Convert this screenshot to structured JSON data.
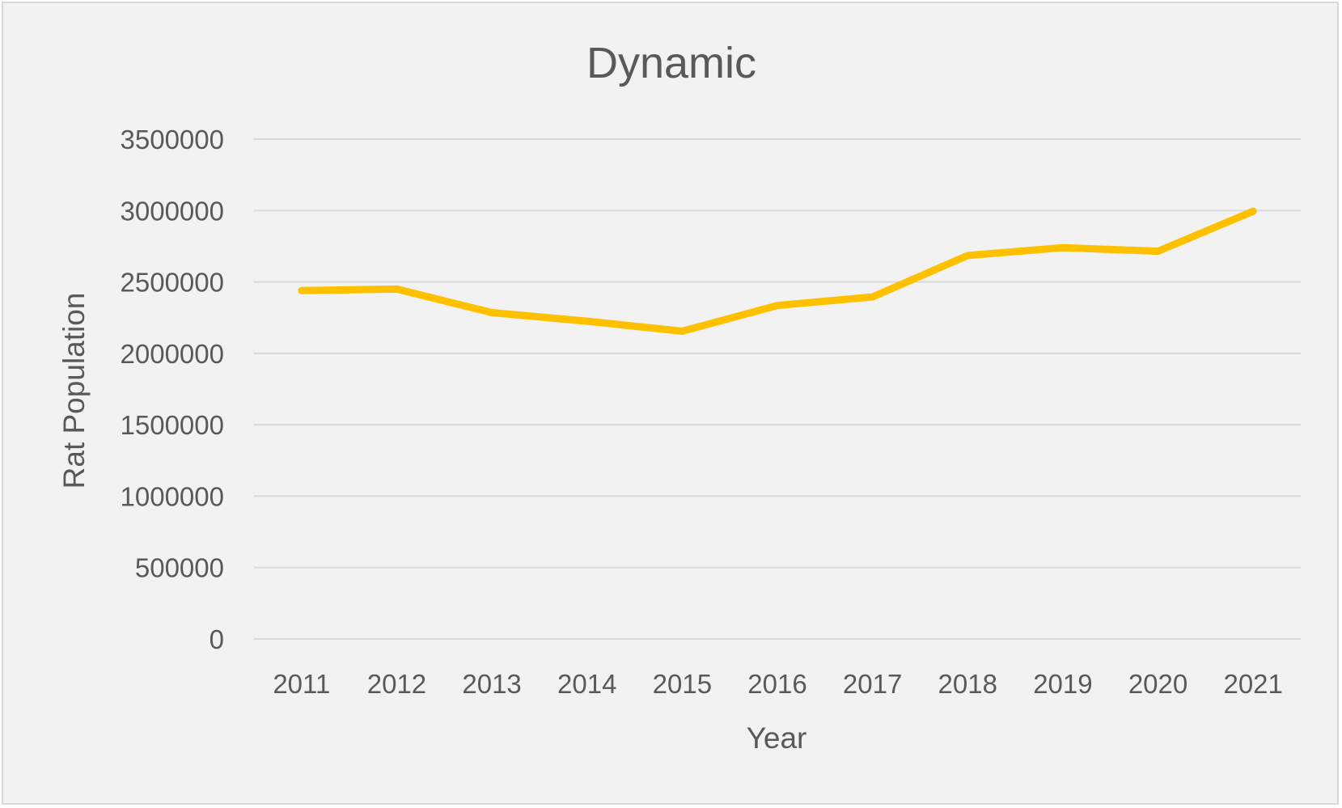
{
  "chart_data": {
    "type": "line",
    "title": "Dynamic",
    "xlabel": "Year",
    "ylabel": "Rat Population",
    "categories": [
      "2011",
      "2012",
      "2013",
      "2014",
      "2015",
      "2016",
      "2017",
      "2018",
      "2019",
      "2020",
      "2021"
    ],
    "series": [
      {
        "color": "#ffc000",
        "values": [
          2440000,
          2450000,
          2285000,
          2225000,
          2155000,
          2335000,
          2395000,
          2685000,
          2740000,
          2715000,
          2995000
        ]
      }
    ],
    "ylim": [
      0,
      3500000
    ],
    "yticks": [
      "0",
      "500000",
      "1000000",
      "1500000",
      "2000000",
      "2500000",
      "3000000",
      "3500000"
    ],
    "grid": true,
    "legend": "none"
  },
  "colors": {
    "background": "#f2f2f2",
    "text": "#595959",
    "grid": "#d9d9d9"
  }
}
